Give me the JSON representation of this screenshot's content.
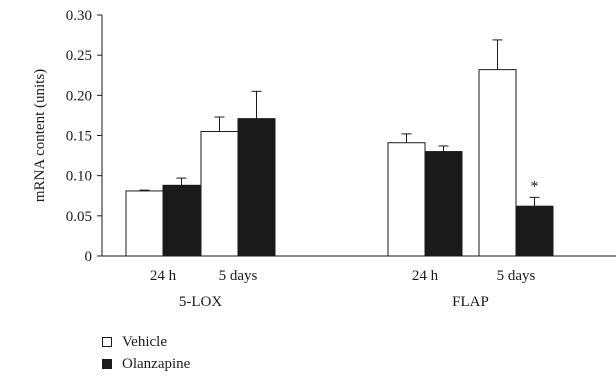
{
  "chart_data": {
    "type": "bar",
    "ylabel": "mRNA content (units)",
    "ylim": [
      0,
      0.3
    ],
    "yticks": [
      "0",
      "0.05",
      "0.10",
      "0.15",
      "0.20",
      "0.25",
      "0.30"
    ],
    "groups": [
      {
        "label": "5-LOX",
        "categories": [
          "24 h",
          "5 days"
        ]
      },
      {
        "label": "FLAP",
        "categories": [
          "24 h",
          "5 days"
        ]
      }
    ],
    "series": [
      {
        "name": "Vehicle",
        "color": "#ffffff",
        "values": [
          0.081,
          0.155,
          0.141,
          0.232
        ],
        "errors": [
          0.001,
          0.018,
          0.011,
          0.037
        ]
      },
      {
        "name": "Olanzapine",
        "color": "#1a1a1a",
        "values": [
          0.088,
          0.171,
          0.13,
          0.062
        ],
        "errors": [
          0.009,
          0.034,
          0.007,
          0.011
        ]
      }
    ],
    "annotations": [
      {
        "text": "*",
        "group": 1,
        "category": 1,
        "series": 1
      }
    ],
    "legend_position": "bottom-left"
  }
}
